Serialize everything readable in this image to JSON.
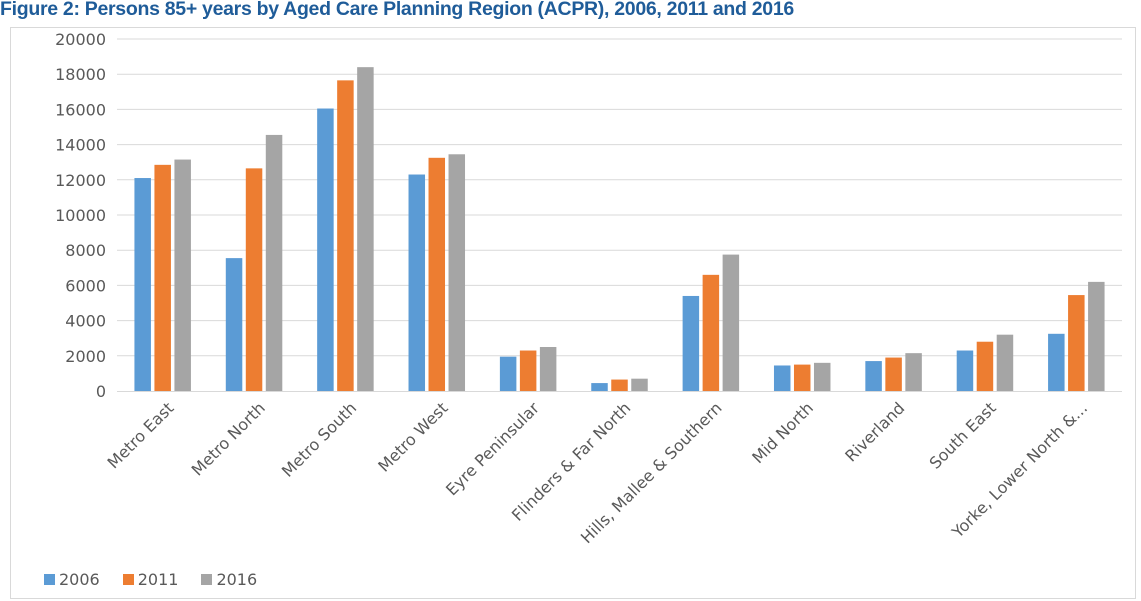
{
  "title": "Figure 2: Persons 85+ years by Aged Care Planning Region (ACPR), 2006, 2011 and 2016",
  "chart_data": {
    "type": "bar",
    "title": "Figure 2: Persons 85+ years by Aged Care Planning Region (ACPR), 2006, 2011 and 2016",
    "xlabel": "",
    "ylabel": "",
    "ylim": [
      0,
      20000
    ],
    "yticks": [
      "0",
      "2000",
      "4000",
      "6000",
      "8000",
      "10000",
      "12000",
      "14000",
      "16000",
      "18000",
      "20000"
    ],
    "grid": true,
    "legend_position": "bottom-left",
    "categories": [
      "Metro East",
      "Metro North",
      "Metro South",
      "Metro West",
      "Eyre Peninsular",
      "Flinders & Far North",
      "Hills, Mallee & Southern",
      "Mid North",
      "Riverland",
      "South East",
      "Yorke, Lower North &..."
    ],
    "series": [
      {
        "name": "2006",
        "color": "#5b9bd5",
        "values": [
          12100,
          7550,
          16050,
          12300,
          1950,
          450,
          5400,
          1450,
          1700,
          2300,
          3250
        ]
      },
      {
        "name": "2011",
        "color": "#ed7d31",
        "values": [
          12850,
          12650,
          17650,
          13250,
          2300,
          650,
          6600,
          1500,
          1900,
          2800,
          5450
        ]
      },
      {
        "name": "2016",
        "color": "#a5a5a5",
        "values": [
          13150,
          14550,
          18400,
          13450,
          2500,
          700,
          7750,
          1600,
          2150,
          3200,
          6200
        ]
      }
    ]
  }
}
